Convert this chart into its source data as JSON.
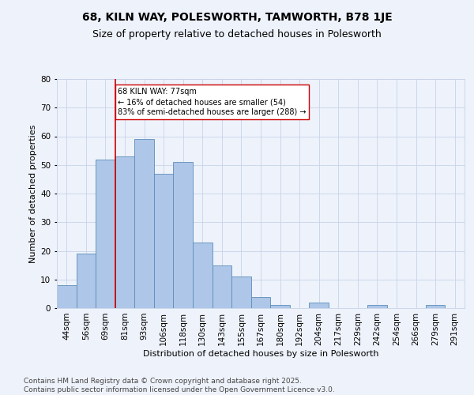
{
  "title1": "68, KILN WAY, POLESWORTH, TAMWORTH, B78 1JE",
  "title2": "Size of property relative to detached houses in Polesworth",
  "xlabel": "Distribution of detached houses by size in Polesworth",
  "ylabel": "Number of detached properties",
  "categories": [
    "44sqm",
    "56sqm",
    "69sqm",
    "81sqm",
    "93sqm",
    "106sqm",
    "118sqm",
    "130sqm",
    "143sqm",
    "155sqm",
    "167sqm",
    "180sqm",
    "192sqm",
    "204sqm",
    "217sqm",
    "229sqm",
    "242sqm",
    "254sqm",
    "266sqm",
    "279sqm",
    "291sqm"
  ],
  "values": [
    8,
    19,
    52,
    53,
    59,
    47,
    51,
    23,
    15,
    11,
    4,
    1,
    0,
    2,
    0,
    0,
    1,
    0,
    0,
    1,
    0
  ],
  "bar_color": "#aec6e8",
  "bar_edge_color": "#5b8db8",
  "grid_color": "#c8d4e8",
  "background_color": "#eef2fb",
  "vline_x_index": 2,
  "vline_color": "#cc0000",
  "annotation_line1": "68 KILN WAY: 77sqm",
  "annotation_line2": "← 16% of detached houses are smaller (54)",
  "annotation_line3": "83% of semi-detached houses are larger (288) →",
  "annotation_box_color": "#ffffff",
  "annotation_box_edge": "#cc0000",
  "ylim": [
    0,
    80
  ],
  "yticks": [
    0,
    10,
    20,
    30,
    40,
    50,
    60,
    70,
    80
  ],
  "footer": "Contains HM Land Registry data © Crown copyright and database right 2025.\nContains public sector information licensed under the Open Government Licence v3.0.",
  "title_fontsize": 10,
  "subtitle_fontsize": 9,
  "axis_label_fontsize": 8,
  "tick_fontsize": 7.5,
  "annotation_fontsize": 7,
  "footer_fontsize": 6.5
}
